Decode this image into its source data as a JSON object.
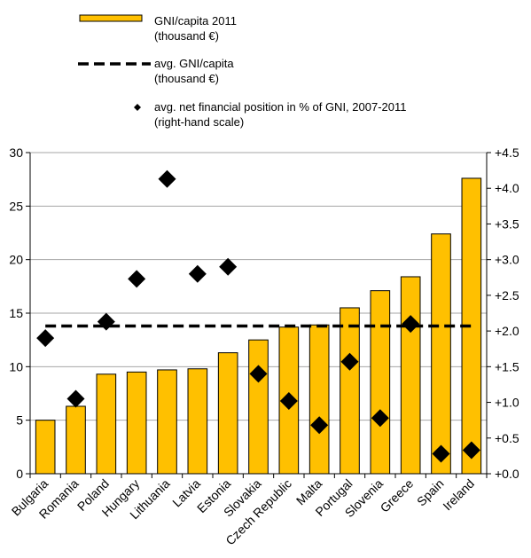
{
  "chart_data": {
    "type": "bar",
    "categories": [
      "Bulgaria",
      "Romania",
      "Poland",
      "Hungary",
      "Lithuania",
      "Latvia",
      "Estonia",
      "Slovakia",
      "Czech Republic",
      "Malta",
      "Portugal",
      "Slovenia",
      "Greece",
      "Spain",
      "Ireland"
    ],
    "series": [
      {
        "name": "GNI/capita 2011\n(thousand €)",
        "type": "bar",
        "axis": "left",
        "color": "#FFC000",
        "values": [
          5.0,
          6.3,
          9.3,
          9.5,
          9.7,
          9.8,
          11.3,
          12.5,
          13.7,
          13.9,
          15.5,
          17.1,
          18.4,
          22.4,
          27.6
        ]
      },
      {
        "name": "avg. GNI/capita\n(thousand €)",
        "type": "line",
        "style": "dashed",
        "axis": "left",
        "color": "#000000",
        "values": [
          13.8,
          13.8,
          13.8,
          13.8,
          13.8,
          13.8,
          13.8,
          13.8,
          13.8,
          13.8,
          13.8,
          13.8,
          13.8,
          13.8,
          13.8
        ]
      },
      {
        "name": "avg. net financial position in % of GNI, 2007-2011\n(right-hand scale)",
        "type": "scatter",
        "marker": "diamond",
        "axis": "right",
        "color": "#000000",
        "values": [
          1.9,
          1.05,
          2.13,
          2.73,
          4.13,
          2.8,
          2.9,
          1.4,
          1.02,
          0.68,
          1.57,
          0.78,
          2.1,
          0.28,
          0.33
        ]
      }
    ],
    "y_left": {
      "min": 0,
      "max": 30,
      "step": 5,
      "ticks": [
        "0",
        "5",
        "10",
        "15",
        "20",
        "25",
        "30"
      ]
    },
    "y_right": {
      "min": 0,
      "max": 4.5,
      "step": 0.5,
      "ticks": [
        "+0.0",
        "+0.5",
        "+1.0",
        "+1.5",
        "+2.0",
        "+2.5",
        "+3.0",
        "+3.5",
        "+4.0",
        "+4.5"
      ]
    },
    "grid": true,
    "legend_position": "top"
  }
}
